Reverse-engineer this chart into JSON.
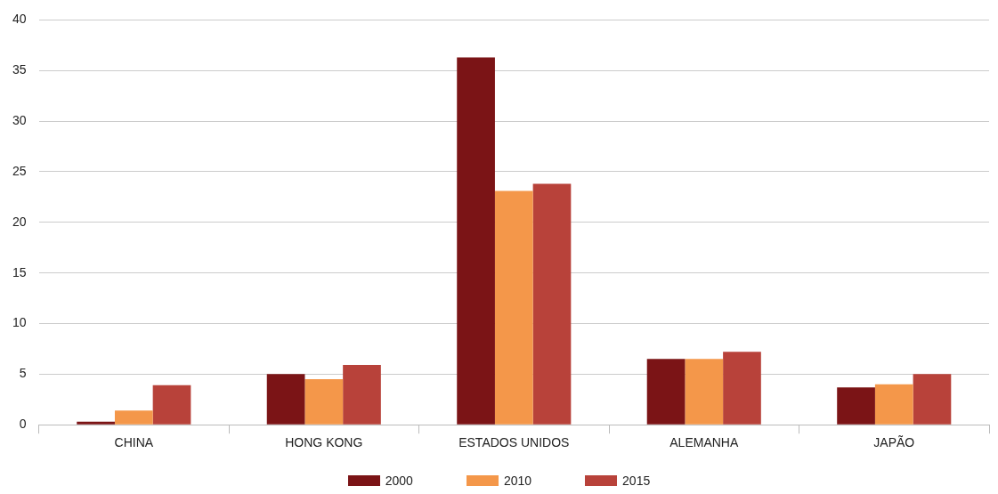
{
  "chart_data": {
    "type": "bar",
    "categories": [
      "CHINA",
      "HONG KONG",
      "ESTADOS UNIDOS",
      "ALEMANHA",
      "JAPÃO"
    ],
    "series": [
      {
        "name": "2000",
        "color": "#7b1416",
        "values": [
          0.3,
          5.0,
          36.3,
          6.5,
          3.7
        ]
      },
      {
        "name": "2010",
        "color": "#f4974a",
        "values": [
          1.4,
          4.5,
          23.1,
          6.5,
          4.0
        ]
      },
      {
        "name": "2015",
        "color": "#b8423a",
        "values": [
          3.9,
          5.9,
          23.8,
          7.2,
          5.0
        ]
      }
    ],
    "ylim": [
      0,
      40
    ],
    "yticks": [
      0,
      5,
      10,
      15,
      20,
      25,
      30,
      35,
      40
    ],
    "grid": "y",
    "legend": "bottom"
  }
}
